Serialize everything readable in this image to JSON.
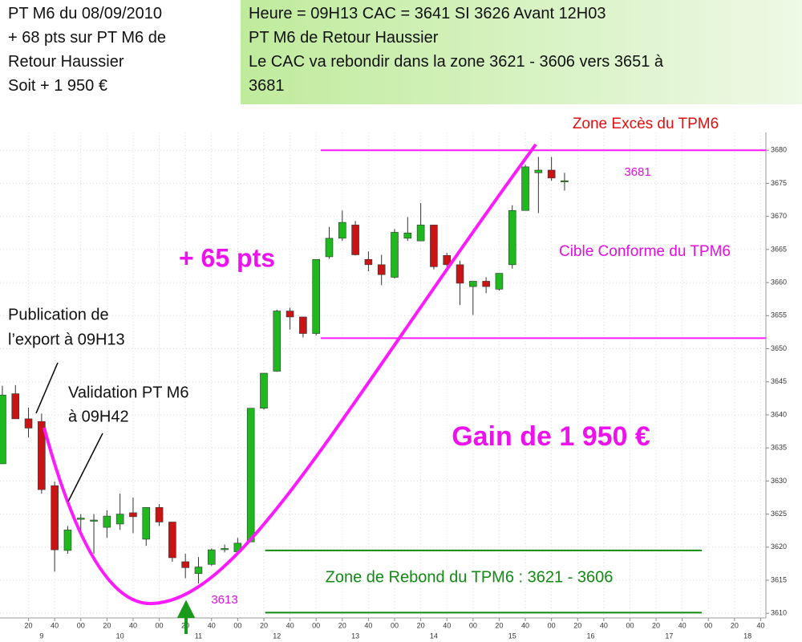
{
  "header": {
    "left": [
      "PT M6 du 08/09/2010",
      "+ 68 pts sur PT M6 de",
      "Retour Haussier",
      "Soit + 1 950 €"
    ],
    "right": [
      "Heure = 09H13  CAC = 3641    SI 3626 Avant 12H03",
      "PT M6 de Retour Haussier",
      "Le CAC va rebondir  dans la zone 3621 - 3606   vers 3651 à",
      "3681"
    ]
  },
  "chart_data": {
    "type": "candlestick",
    "x": [
      540,
      550,
      560,
      570,
      580,
      590,
      600,
      610,
      620,
      630,
      640,
      650,
      660,
      670,
      680,
      690,
      700,
      710,
      720,
      730,
      740,
      750,
      760,
      770,
      780,
      790,
      800,
      810,
      820,
      830,
      840,
      850,
      860,
      870,
      880,
      890,
      900,
      910,
      920,
      930,
      940,
      950,
      960,
      970
    ],
    "open": [
      3632.6,
      3643.2,
      3639.4,
      3639.0,
      3629.3,
      3619.5,
      3624.2,
      3624.1,
      3623.0,
      3623.5,
      3625.2,
      3621.2,
      3626.0,
      3623.8,
      3617.8,
      3616.0,
      3617.4,
      3619.8,
      3619.3,
      3620.8,
      3641.0,
      3646.6,
      3655.7,
      3654.8,
      3652.3,
      3663.9,
      3666.7,
      3668.7,
      3663.5,
      3662.7,
      3660.8,
      3666.7,
      3666.3,
      3668.7,
      3664.1,
      3662.7,
      3659.4,
      3660.2,
      3659.0,
      3662.7,
      3670.9,
      3676.6,
      3677.0,
      3675.4
    ],
    "high": [
      3644.4,
      3644.5,
      3641.1,
      3640.2,
      3629.9,
      3623.2,
      3625.0,
      3625.0,
      3625.6,
      3628.1,
      3627.5,
      3626.0,
      3626.5,
      3623.8,
      3619.0,
      3618.5,
      3619.8,
      3620.4,
      3621.4,
      3641.0,
      3646.3,
      3655.9,
      3656.2,
      3654.8,
      3663.5,
      3668.4,
      3670.9,
      3669.3,
      3664.7,
      3664.2,
      3668.1,
      3669.9,
      3672.0,
      3668.7,
      3664.5,
      3663.3,
      3660.2,
      3660.8,
      3661.4,
      3671.7,
      3677.8,
      3679.0,
      3679.0,
      3676.6
    ],
    "low": [
      3632.6,
      3639.4,
      3636.6,
      3628.1,
      3616.3,
      3619.0,
      3622.0,
      3619.0,
      3621.4,
      3622.6,
      3622.1,
      3620.2,
      3623.2,
      3617.8,
      3615.3,
      3614.5,
      3617.2,
      3619.2,
      3619.0,
      3620.8,
      3640.8,
      3646.5,
      3652.9,
      3651.7,
      3652.0,
      3663.6,
      3666.3,
      3664.1,
      3661.7,
      3659.6,
      3660.6,
      3666.3,
      3666.3,
      3662.0,
      3662.4,
      3656.6,
      3655.1,
      3658.4,
      3658.8,
      3662.1,
      3670.9,
      3670.5,
      3675.4,
      3673.9
    ],
    "close": [
      3643.0,
      3639.4,
      3638.0,
      3628.7,
      3619.6,
      3622.6,
      3624.4,
      3624.1,
      3624.7,
      3625.0,
      3624.6,
      3626.0,
      3623.8,
      3618.4,
      3616.9,
      3617.0,
      3619.6,
      3619.8,
      3620.6,
      3641.0,
      3646.3,
      3655.7,
      3654.8,
      3652.3,
      3663.5,
      3666.7,
      3669.1,
      3664.2,
      3662.7,
      3661.2,
      3667.6,
      3667.5,
      3668.7,
      3662.4,
      3662.7,
      3659.9,
      3660.2,
      3659.4,
      3661.4,
      3670.9,
      3677.5,
      3677.0,
      3675.8,
      3675.4
    ],
    "up_color": "#1fb81f",
    "down_color": "#c81414",
    "xlim": [
      538.2,
      1124
    ],
    "ylim": [
      3609.3,
      3682.7
    ],
    "xticks": [
      {
        "value": 560,
        "label": "20"
      },
      {
        "value": 580,
        "label": "40"
      },
      {
        "value": 600,
        "label": "00"
      },
      {
        "value": 620,
        "label": "20"
      },
      {
        "value": 640,
        "label": "40"
      },
      {
        "value": 660,
        "label": "00"
      },
      {
        "value": 680,
        "label": "20"
      },
      {
        "value": 700,
        "label": "40"
      },
      {
        "value": 720,
        "label": "00"
      },
      {
        "value": 740,
        "label": "20"
      },
      {
        "value": 760,
        "label": "40"
      },
      {
        "value": 780,
        "label": "00"
      },
      {
        "value": 800,
        "label": "20"
      },
      {
        "value": 820,
        "label": "40"
      },
      {
        "value": 840,
        "label": "00"
      },
      {
        "value": 860,
        "label": "20"
      },
      {
        "value": 880,
        "label": "40"
      },
      {
        "value": 900,
        "label": "00"
      },
      {
        "value": 920,
        "label": "20"
      },
      {
        "value": 940,
        "label": "40"
      },
      {
        "value": 960,
        "label": "00"
      },
      {
        "value": 980,
        "label": "20"
      },
      {
        "value": 1000,
        "label": "40"
      },
      {
        "value": 1020,
        "label": "00"
      },
      {
        "value": 1040,
        "label": "20"
      },
      {
        "value": 1060,
        "label": "40"
      },
      {
        "value": 1080,
        "label": "00"
      },
      {
        "value": 1100,
        "label": "20"
      },
      {
        "value": 1120,
        "label": "40"
      }
    ],
    "hour_ticks": [
      {
        "value": 570,
        "label": "9"
      },
      {
        "value": 630,
        "label": "10"
      },
      {
        "value": 690,
        "label": "11"
      },
      {
        "value": 750,
        "label": "12"
      },
      {
        "value": 810,
        "label": "13"
      },
      {
        "value": 870,
        "label": "14"
      },
      {
        "value": 930,
        "label": "15"
      },
      {
        "value": 990,
        "label": "16"
      },
      {
        "value": 1050,
        "label": "17"
      },
      {
        "value": 1110,
        "label": "18"
      }
    ],
    "yticks": [
      3610,
      3615,
      3620,
      3625,
      3630,
      3635,
      3640,
      3645,
      3650,
      3655,
      3660,
      3665,
      3670,
      3675,
      3680
    ],
    "grid": true,
    "levels": [
      {
        "value": 3680,
        "from": 783.5,
        "to": 1124,
        "color": "#ff1aff"
      },
      {
        "value": 3651.6,
        "from": 783.5,
        "to": 1124,
        "color": "#ff1aff"
      },
      {
        "value": 3619.5,
        "from": 741,
        "to": 1075,
        "color": "#138a13"
      },
      {
        "value": 3610.1,
        "from": 741,
        "to": 1075,
        "color": "#138a13"
      }
    ],
    "annotations": [
      "Zone Excès du TPM6",
      "3681",
      "Cible Conforme du TPM6",
      "+ 65 pts",
      "Publication de",
      "l’export à 09H13",
      "Validation PT M6",
      "à 09H42",
      "Gain de 1 950 €",
      "Zone de Rebond du TPM6 : 3621 - 3606",
      "3613"
    ]
  }
}
